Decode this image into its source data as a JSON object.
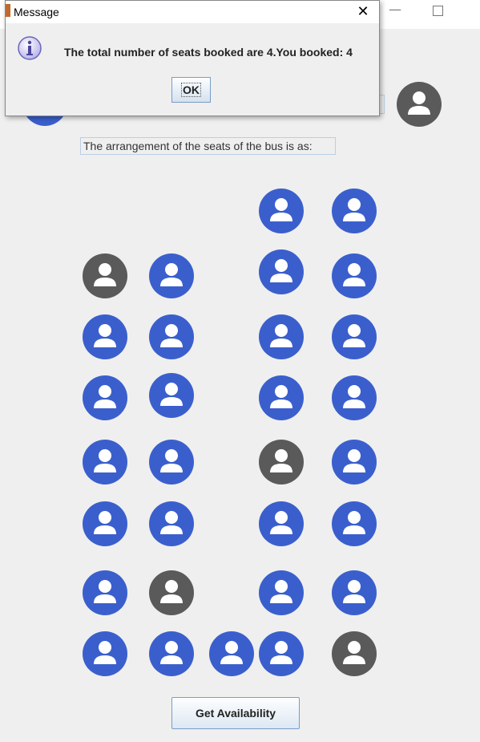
{
  "window": {
    "minimize_glyph": "—",
    "maximize_glyph": ""
  },
  "dialog": {
    "title": "Message",
    "close_glyph": "✕",
    "message": "The total number of seats booked are 4.You booked: 4",
    "ok_label": "OK",
    "icon": "info-icon"
  },
  "bus": {
    "arrangement_label": "The arrangement of the seats of the bus is as:",
    "colors": {
      "available": "#3a5fcd",
      "booked": "#5a5a5a"
    },
    "legend": [
      {
        "name": "legend-available",
        "status": "available"
      },
      {
        "name": "legend-booked",
        "status": "booked"
      }
    ],
    "seats": [
      {
        "id": "seat-r1-c3",
        "status": "available"
      },
      {
        "id": "seat-r1-c4",
        "status": "available"
      },
      {
        "id": "seat-r2-c1",
        "status": "booked"
      },
      {
        "id": "seat-r2-c2",
        "status": "available"
      },
      {
        "id": "seat-r2-c3",
        "status": "available"
      },
      {
        "id": "seat-r2-c4",
        "status": "available"
      },
      {
        "id": "seat-r3-c1",
        "status": "available"
      },
      {
        "id": "seat-r3-c2",
        "status": "available"
      },
      {
        "id": "seat-r3-c3",
        "status": "available"
      },
      {
        "id": "seat-r3-c4",
        "status": "available"
      },
      {
        "id": "seat-r4-c1",
        "status": "available"
      },
      {
        "id": "seat-r4-c2",
        "status": "available"
      },
      {
        "id": "seat-r4-c3",
        "status": "available"
      },
      {
        "id": "seat-r4-c4",
        "status": "available"
      },
      {
        "id": "seat-r5-c1",
        "status": "available"
      },
      {
        "id": "seat-r5-c2",
        "status": "available"
      },
      {
        "id": "seat-r5-c3",
        "status": "booked"
      },
      {
        "id": "seat-r5-c4",
        "status": "available"
      },
      {
        "id": "seat-r6-c1",
        "status": "available"
      },
      {
        "id": "seat-r6-c2",
        "status": "available"
      },
      {
        "id": "seat-r6-c3",
        "status": "available"
      },
      {
        "id": "seat-r6-c4",
        "status": "available"
      },
      {
        "id": "seat-r7-c1",
        "status": "available"
      },
      {
        "id": "seat-r7-c2",
        "status": "booked"
      },
      {
        "id": "seat-r7-c3",
        "status": "available"
      },
      {
        "id": "seat-r7-c4",
        "status": "available"
      },
      {
        "id": "seat-r8-c1",
        "status": "available"
      },
      {
        "id": "seat-r8-c2",
        "status": "available"
      },
      {
        "id": "seat-r8-mid",
        "status": "available"
      },
      {
        "id": "seat-r8-c3",
        "status": "available"
      },
      {
        "id": "seat-r8-c4",
        "status": "booked"
      }
    ],
    "button_label": "Get Availability"
  }
}
